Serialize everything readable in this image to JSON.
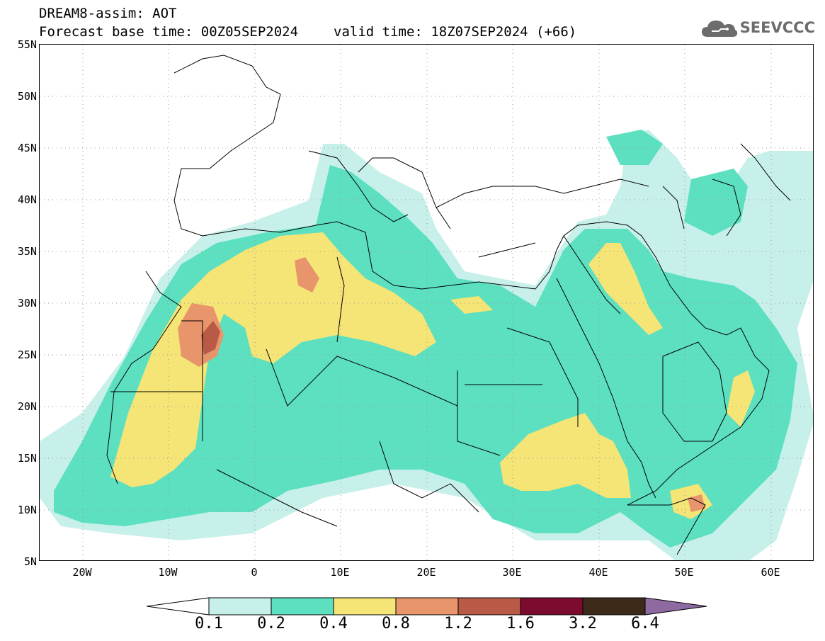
{
  "header": {
    "title": "DREAM8-assim: AOT",
    "base_time": "Forecast base time: 00Z05SEP2024",
    "valid_time": "valid time: 18Z07SEP2024 (+66)"
  },
  "logo": {
    "text": "SEEVCCC",
    "icon": "cloud-icon"
  },
  "map": {
    "variable": "AOT",
    "lat_labels": [
      "55N",
      "50N",
      "45N",
      "40N",
      "35N",
      "30N",
      "25N",
      "20N",
      "15N",
      "10N",
      "5N"
    ],
    "lon_labels": [
      "20W",
      "10W",
      "0",
      "10E",
      "20E",
      "30E",
      "40E",
      "50E",
      "60E"
    ],
    "lat_range": [
      5,
      55
    ],
    "lon_range": [
      -25,
      65
    ]
  },
  "colorbar": {
    "thresholds": [
      "0.1",
      "0.2",
      "0.4",
      "0.8",
      "1.2",
      "1.6",
      "3.2",
      "6.4"
    ],
    "colors": [
      "#ffffff",
      "#c8f0ea",
      "#5ce0c0",
      "#f5e476",
      "#e8956c",
      "#b95a46",
      "#7c0c2e",
      "#3e2a18",
      "#8d6aa0"
    ]
  },
  "colors": {
    "c1": "#c8f0ea",
    "c2": "#5ce0c0",
    "c3": "#f5e476",
    "c4": "#e8956c",
    "c5": "#b95a46",
    "c6": "#7c0c2e"
  }
}
